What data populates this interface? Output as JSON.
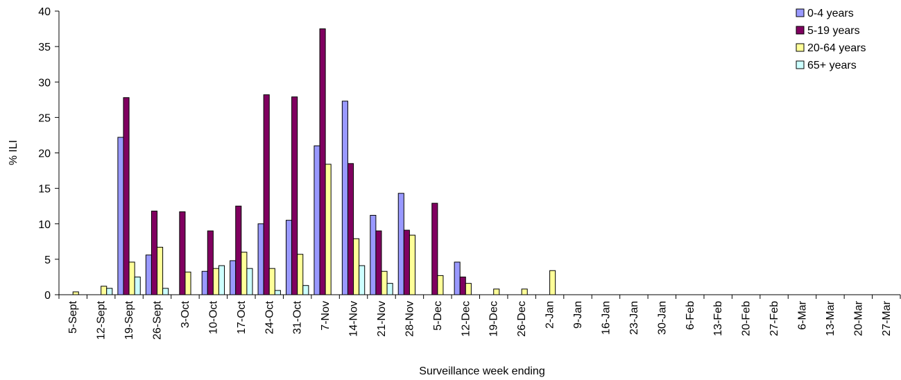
{
  "chart_data": {
    "type": "bar",
    "title": "",
    "xlabel": "Surveillance week ending",
    "ylabel": "% ILI",
    "ylim": [
      0,
      40
    ],
    "yticks": [
      0,
      5,
      10,
      15,
      20,
      25,
      30,
      35,
      40
    ],
    "grid": false,
    "legend_position": "top-right",
    "categories": [
      "5-Sept",
      "12-Sept",
      "19-Sept",
      "26-Sept",
      "3-Oct",
      "10-Oct",
      "17-Oct",
      "24-Oct",
      "31-Oct",
      "7-Nov",
      "14-Nov",
      "21-Nov",
      "28-Nov",
      "5-Dec",
      "12-Dec",
      "19-Dec",
      "26-Dec",
      "2-Jan",
      "9-Jan",
      "16-Jan",
      "23-Jan",
      "30-Jan",
      "6-Feb",
      "13-Feb",
      "20-Feb",
      "27-Feb",
      "6-Mar",
      "13-Mar",
      "20-Mar",
      "27-Mar"
    ],
    "series": [
      {
        "name": "0-4 years",
        "color": "#9999ff",
        "values": [
          0,
          0,
          22.2,
          5.6,
          0,
          3.3,
          4.8,
          10,
          10.5,
          21,
          27.3,
          11.2,
          14.3,
          0,
          4.6,
          0,
          0,
          0,
          0,
          0,
          0,
          0,
          0,
          0,
          0,
          0,
          0,
          0,
          0,
          0
        ]
      },
      {
        "name": "5-19 years",
        "color": "#800060",
        "values": [
          0,
          0,
          27.8,
          11.8,
          11.7,
          9,
          12.5,
          28.2,
          27.9,
          37.5,
          18.5,
          9,
          9.1,
          12.9,
          2.5,
          0,
          0,
          0,
          0,
          0,
          0,
          0,
          0,
          0,
          0,
          0,
          0,
          0,
          0,
          0
        ]
      },
      {
        "name": "20-64 years",
        "color": "#ffff99",
        "values": [
          0.4,
          1.2,
          4.6,
          6.7,
          3.2,
          3.7,
          6,
          3.7,
          5.7,
          18.4,
          7.9,
          3.3,
          8.4,
          2.7,
          1.6,
          0.8,
          0.8,
          3.4,
          0,
          0,
          0,
          0,
          0,
          0,
          0,
          0,
          0,
          0,
          0,
          0
        ]
      },
      {
        "name": "65+ years",
        "color": "#ccffff",
        "values": [
          0,
          0.9,
          2.5,
          0.9,
          0,
          4.1,
          3.7,
          0.6,
          1.3,
          0,
          4.1,
          1.6,
          0,
          0,
          0,
          0,
          0,
          0,
          0,
          0,
          0,
          0,
          0,
          0,
          0,
          0,
          0,
          0,
          0,
          0
        ]
      }
    ]
  }
}
